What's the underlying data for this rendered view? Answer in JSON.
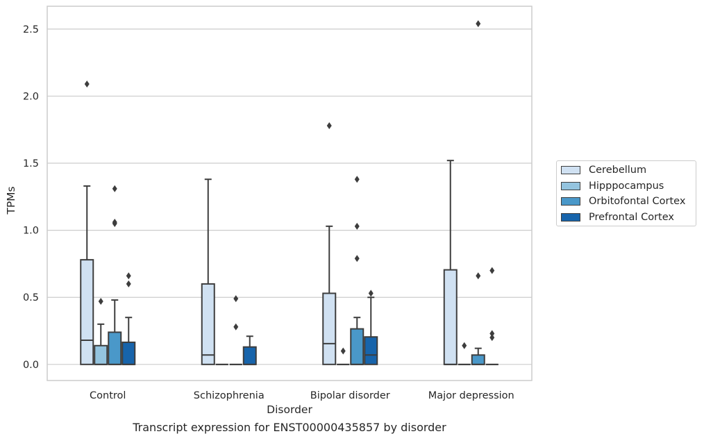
{
  "chart_data": {
    "type": "box",
    "xlabel": "Disorder",
    "ylabel": "TPMs",
    "ylim": [
      -0.12,
      2.67
    ],
    "yticks": [
      "0.0",
      "0.5",
      "1.0",
      "1.5",
      "2.0",
      "2.5"
    ],
    "grid": true,
    "legend_position": "right",
    "categories": [
      "Control",
      "Schizophrenia",
      "Bipolar disorder",
      "Major depression"
    ],
    "series": [
      {
        "name": "Cerebellum",
        "color": "#d0e1f2",
        "boxes": [
          {
            "q1": 0,
            "median": 0.18,
            "q3": 0.78,
            "whisker_low": 0,
            "whisker_high": 1.33,
            "outliers": [
              2.09
            ]
          },
          {
            "q1": 0,
            "median": 0.07,
            "q3": 0.6,
            "whisker_low": 0,
            "whisker_high": 1.38,
            "outliers": []
          },
          {
            "q1": 0,
            "median": 0.155,
            "q3": 0.53,
            "whisker_low": 0,
            "whisker_high": 1.03,
            "outliers": [
              1.78
            ]
          },
          {
            "q1": 0,
            "median": 0,
            "q3": 0.705,
            "whisker_low": 0,
            "whisker_high": 1.52,
            "outliers": []
          }
        ]
      },
      {
        "name": "Hipppocampus",
        "color": "#94c4df",
        "boxes": [
          {
            "q1": 0,
            "median": 0,
            "q3": 0.14,
            "whisker_low": 0,
            "whisker_high": 0.3,
            "outliers": [
              0.47
            ]
          },
          {
            "q1": 0,
            "median": 0,
            "q3": 0,
            "whisker_low": 0,
            "whisker_high": 0,
            "outliers": []
          },
          {
            "q1": 0,
            "median": 0,
            "q3": 0,
            "whisker_low": 0,
            "whisker_high": 0,
            "outliers": [
              0.1
            ]
          },
          {
            "q1": 0,
            "median": 0,
            "q3": 0,
            "whisker_low": 0,
            "whisker_high": 0,
            "outliers": [
              0.14
            ]
          }
        ]
      },
      {
        "name": "Orbitofontal Cortex",
        "color": "#4a98c9",
        "boxes": [
          {
            "q1": 0,
            "median": 0,
            "q3": 0.24,
            "whisker_low": 0,
            "whisker_high": 0.48,
            "outliers": [
              1.31,
              1.05,
              1.06
            ]
          },
          {
            "q1": 0,
            "median": 0,
            "q3": 0,
            "whisker_low": 0,
            "whisker_high": 0,
            "outliers": [
              0.49,
              0.28
            ]
          },
          {
            "q1": 0,
            "median": 0,
            "q3": 0.265,
            "whisker_low": 0,
            "whisker_high": 0.35,
            "outliers": [
              1.38,
              1.03,
              0.79
            ]
          },
          {
            "q1": 0,
            "median": 0,
            "q3": 0.07,
            "whisker_low": 0,
            "whisker_high": 0.12,
            "outliers": [
              2.54,
              0.66
            ]
          }
        ]
      },
      {
        "name": "Prefrontal Cortex",
        "color": "#1764ab",
        "boxes": [
          {
            "q1": 0,
            "median": 0,
            "q3": 0.165,
            "whisker_low": 0,
            "whisker_high": 0.35,
            "outliers": [
              0.66,
              0.6
            ]
          },
          {
            "q1": 0,
            "median": 0,
            "q3": 0.13,
            "whisker_low": 0,
            "whisker_high": 0.21,
            "outliers": []
          },
          {
            "q1": 0,
            "median": 0.07,
            "q3": 0.205,
            "whisker_low": 0,
            "whisker_high": 0.5,
            "outliers": [
              0.53
            ]
          },
          {
            "q1": 0,
            "median": 0,
            "q3": 0,
            "whisker_low": 0,
            "whisker_high": 0,
            "outliers": [
              0.7,
              0.23,
              0.2
            ]
          }
        ]
      }
    ]
  },
  "caption": "Transcript expression for ENST00000435857 by disorder"
}
